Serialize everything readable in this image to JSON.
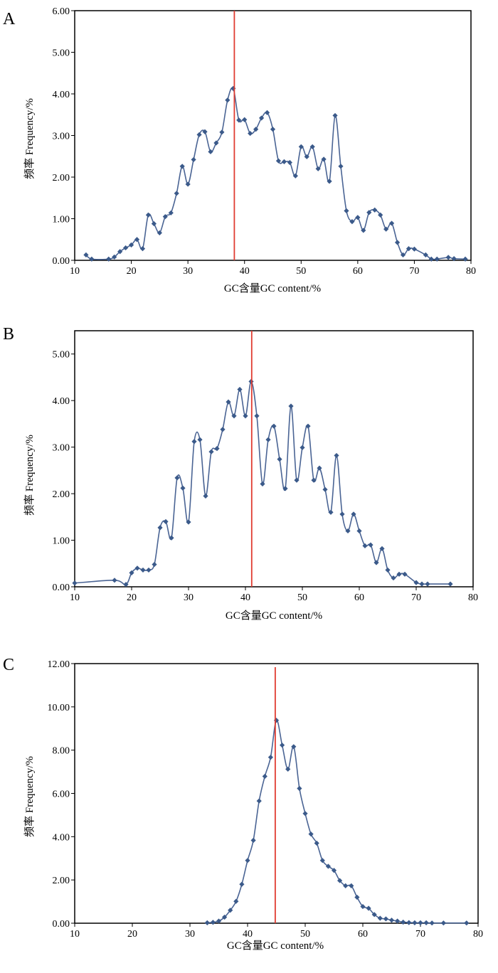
{
  "chart_data": [
    {
      "panel": "A",
      "type": "line",
      "xlabel": "GC含量GC content/%",
      "ylabel": "频率 Frequency/%",
      "xlim": [
        10,
        80
      ],
      "ylim": [
        0,
        6
      ],
      "xticks": [
        10,
        20,
        30,
        40,
        50,
        60,
        70,
        80
      ],
      "yticks": [
        "0.00",
        "1.00",
        "2.00",
        "3.00",
        "4.00",
        "5.00",
        "6.00"
      ],
      "marker_line_x": 38.2,
      "series": [
        {
          "name": "frequency",
          "x": [
            12,
            13,
            16,
            17,
            18,
            19,
            20,
            21,
            22,
            23,
            24,
            25,
            26,
            27,
            28,
            29,
            30,
            31,
            32,
            33,
            34,
            35,
            36,
            37,
            38,
            39,
            40,
            41,
            42,
            43,
            44,
            45,
            46,
            47,
            48,
            49,
            50,
            51,
            52,
            53,
            54,
            55,
            56,
            57,
            58,
            59,
            60,
            61,
            62,
            63,
            64,
            65,
            66,
            67,
            68,
            69,
            70,
            72,
            73,
            74,
            76,
            77,
            79
          ],
          "y": [
            0.13,
            0.03,
            0.03,
            0.08,
            0.21,
            0.3,
            0.37,
            0.5,
            0.28,
            1.09,
            0.88,
            0.66,
            1.05,
            1.14,
            1.61,
            2.26,
            1.83,
            2.42,
            3.02,
            3.09,
            2.61,
            2.82,
            3.08,
            3.85,
            4.13,
            3.37,
            3.38,
            3.05,
            3.15,
            3.42,
            3.55,
            3.15,
            2.39,
            2.37,
            2.35,
            2.03,
            2.73,
            2.49,
            2.73,
            2.2,
            2.43,
            1.9,
            3.48,
            2.26,
            1.19,
            0.93,
            1.03,
            0.72,
            1.15,
            1.21,
            1.09,
            0.75,
            0.89,
            0.43,
            0.13,
            0.28,
            0.27,
            0.13,
            0.03,
            0.03,
            0.07,
            0.04,
            0.03
          ]
        }
      ]
    },
    {
      "panel": "B",
      "type": "line",
      "xlabel": "GC含量GC content/%",
      "ylabel": "频率 Frequency/%",
      "xlim": [
        10,
        80
      ],
      "ylim": [
        0,
        5.5
      ],
      "xticks": [
        10,
        20,
        30,
        40,
        50,
        60,
        70,
        80
      ],
      "yticks": [
        "0.00",
        "1.00",
        "2.00",
        "3.00",
        "4.00",
        "5.00"
      ],
      "marker_line_x": 41.1,
      "series": [
        {
          "name": "frequency",
          "x": [
            10,
            17,
            19,
            20,
            21,
            22,
            23,
            24,
            25,
            26,
            27,
            28,
            29,
            30,
            31,
            32,
            33,
            34,
            35,
            36,
            37,
            38,
            39,
            40,
            41,
            42,
            43,
            44,
            45,
            46,
            47,
            48,
            49,
            50,
            51,
            52,
            53,
            54,
            55,
            56,
            57,
            58,
            59,
            60,
            61,
            62,
            63,
            64,
            65,
            66,
            67,
            68,
            70,
            71,
            72,
            76
          ],
          "y": [
            0.08,
            0.14,
            0.05,
            0.3,
            0.4,
            0.36,
            0.36,
            0.48,
            1.27,
            1.4,
            1.05,
            2.34,
            2.12,
            1.39,
            3.12,
            3.16,
            1.95,
            2.9,
            2.97,
            3.38,
            3.97,
            3.67,
            4.24,
            3.67,
            4.41,
            3.67,
            2.21,
            3.16,
            3.45,
            2.74,
            2.11,
            3.88,
            2.29,
            2.99,
            3.45,
            2.29,
            2.55,
            2.09,
            1.6,
            2.82,
            1.56,
            1.2,
            1.56,
            1.2,
            0.88,
            0.9,
            0.52,
            0.82,
            0.36,
            0.19,
            0.27,
            0.27,
            0.09,
            0.06,
            0.06,
            0.06
          ]
        }
      ]
    },
    {
      "panel": "C",
      "type": "line",
      "xlabel": "GC含量GC content/%",
      "ylabel": "频率 Frequency/%",
      "xlim": [
        10,
        80
      ],
      "ylim": [
        0,
        12
      ],
      "xticks": [
        10,
        20,
        30,
        40,
        50,
        60,
        70,
        80
      ],
      "yticks": [
        "0.00",
        "2.00",
        "4.00",
        "6.00",
        "8.00",
        "10.00",
        "12.00"
      ],
      "marker_line_x": 44.8,
      "series": [
        {
          "name": "frequency",
          "x": [
            33,
            34,
            35,
            36,
            37,
            38,
            39,
            40,
            41,
            42,
            43,
            44,
            45,
            46,
            47,
            48,
            49,
            50,
            51,
            52,
            53,
            54,
            55,
            56,
            57,
            58,
            59,
            60,
            61,
            62,
            63,
            64,
            65,
            66,
            67,
            68,
            69,
            70,
            71,
            72,
            74,
            78
          ],
          "y": [
            0.02,
            0.04,
            0.1,
            0.28,
            0.6,
            1.01,
            1.8,
            2.9,
            3.83,
            5.65,
            6.79,
            7.67,
            9.38,
            8.23,
            7.12,
            8.16,
            6.23,
            5.07,
            4.12,
            3.7,
            2.9,
            2.63,
            2.44,
            1.97,
            1.73,
            1.73,
            1.2,
            0.77,
            0.69,
            0.4,
            0.23,
            0.2,
            0.14,
            0.1,
            0.05,
            0.03,
            0.02,
            0.02,
            0.02,
            0.01,
            0.01,
            0.01
          ]
        }
      ]
    }
  ],
  "colors": {
    "line": "#4a6494",
    "marker": "#3b5a8a",
    "vline": "#e03c31",
    "axis": "#000000"
  }
}
